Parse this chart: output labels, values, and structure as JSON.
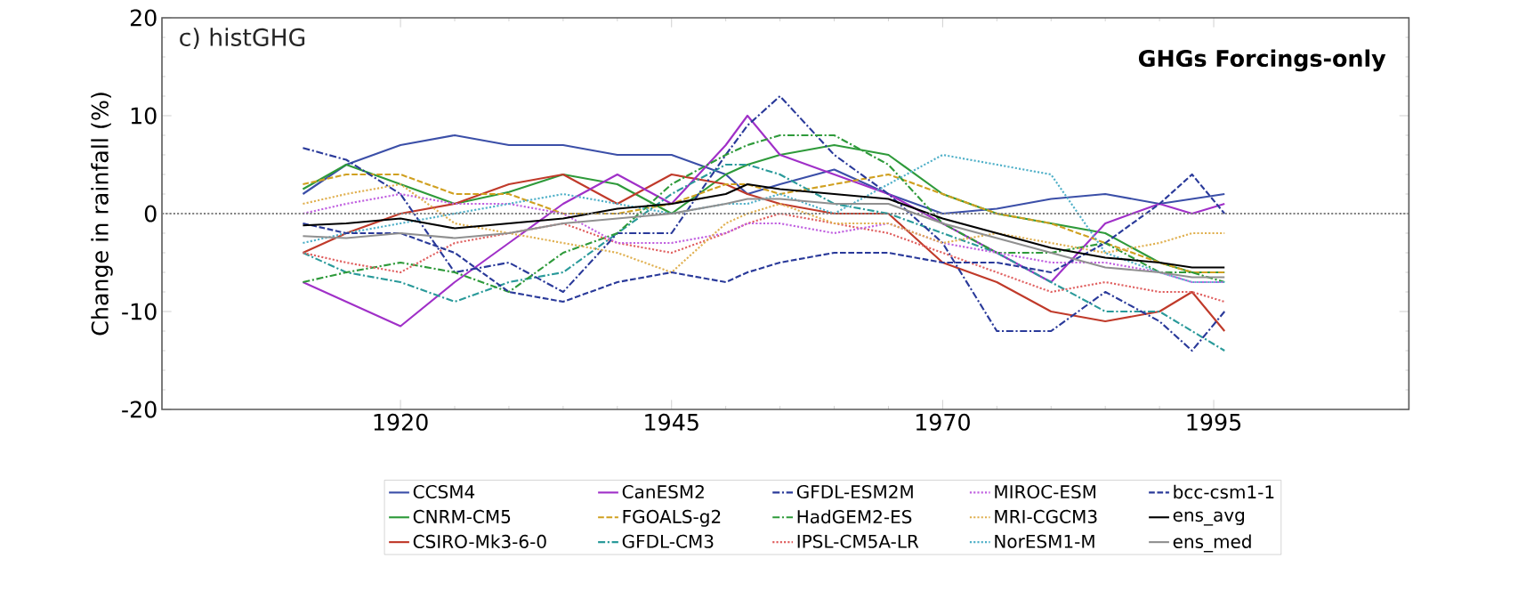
{
  "chart_data": {
    "type": "line",
    "title": "c) histGHG",
    "ylabel": "Change in rainfall (%)",
    "annotations": [
      "GHGs Forcings-only"
    ],
    "x": [
      1911,
      1915,
      1920,
      1925,
      1930,
      1935,
      1940,
      1945,
      1950,
      1952,
      1955,
      1960,
      1965,
      1970,
      1975,
      1980,
      1985,
      1990,
      1993,
      1996
    ],
    "xlim": [
      1898,
      2013
    ],
    "xticks": [
      1920,
      1945,
      1970,
      1995
    ],
    "ylim": [
      -20,
      20
    ],
    "yticks": [
      -20,
      -10,
      0,
      10,
      20
    ],
    "legend": "bottom",
    "ref_lines": [
      {
        "axis": "y",
        "value": 0,
        "color": "#808080",
        "line_style": "dotted"
      }
    ],
    "series": [
      {
        "name": "CCSM4",
        "color": "#3b4fa8",
        "line_style": "solid",
        "values": [
          2,
          5,
          7,
          8,
          7,
          7,
          6,
          6,
          4,
          2,
          3,
          4.5,
          2,
          0,
          0.5,
          1.5,
          2,
          1,
          1.5,
          2
        ]
      },
      {
        "name": "CNRM-CM5",
        "color": "#2e9a3a",
        "line_style": "solid",
        "values": [
          2.5,
          5,
          3,
          1,
          2.2,
          4,
          3,
          0,
          4,
          5,
          6,
          7,
          6,
          2,
          0,
          -1,
          -2,
          -5,
          -6,
          -6
        ]
      },
      {
        "name": "CSIRO-Mk3-6-0",
        "color": "#c03a2a",
        "line_style": "solid",
        "values": [
          -4,
          -2,
          0,
          1,
          3,
          4,
          1,
          4,
          3,
          2,
          1,
          0,
          0,
          -5,
          -7,
          -10,
          -11,
          -10,
          -8,
          -12
        ]
      },
      {
        "name": "CanESM2",
        "color": "#a030c8",
        "line_style": "solid",
        "values": [
          -7,
          -9,
          -11.5,
          -7,
          -3,
          1,
          4,
          1,
          7,
          10,
          6,
          4,
          2,
          -1,
          -4,
          -7,
          -1,
          1,
          0,
          1
        ]
      },
      {
        "name": "FGOALS-g2",
        "color": "#d0a020",
        "line_style": "dashed",
        "values": [
          3,
          4,
          4,
          2,
          2,
          0,
          0,
          1,
          3,
          3,
          2,
          3,
          4,
          2,
          0,
          -1,
          -3,
          -5,
          -6,
          -6
        ]
      },
      {
        "name": "GFDL-CM3",
        "color": "#2a9a9a",
        "line_style": "dashdot",
        "values": [
          -4,
          -6,
          -7,
          -9,
          -7,
          -6,
          -2,
          2,
          5,
          5,
          4,
          1,
          0,
          -2,
          -4,
          -7,
          -10,
          -10,
          -12,
          -14
        ]
      },
      {
        "name": "GFDL-ESM2M",
        "color": "#2a3a9a",
        "line_style": "dashdot",
        "values": [
          6.7,
          5.5,
          2,
          -6,
          -5,
          -8,
          -2,
          -2,
          6,
          9,
          12,
          6,
          2,
          -3,
          -12,
          -12,
          -8,
          -11,
          -14,
          -10
        ]
      },
      {
        "name": "HadGEM2-ES",
        "color": "#2e9a3a",
        "line_style": "dashdot",
        "values": [
          -7,
          -6,
          -5,
          -6,
          -8,
          -4,
          -2,
          3,
          6,
          7,
          8,
          8,
          5,
          -1,
          -4,
          -4,
          -3,
          -6,
          -6,
          -7
        ]
      },
      {
        "name": "IPSL-CM5A-LR",
        "color": "#e06060",
        "line_style": "dotted",
        "values": [
          -4,
          -5,
          -6,
          -3,
          -2,
          -1,
          -3,
          -4,
          -2,
          -1,
          0,
          -1,
          -2,
          -4,
          -6,
          -8,
          -7,
          -8,
          -8,
          -9
        ]
      },
      {
        "name": "MIROC-ESM",
        "color": "#c060e0",
        "line_style": "dotted",
        "values": [
          0,
          1,
          2,
          1,
          1,
          0,
          -3,
          -3,
          -2,
          -1,
          -1,
          -2,
          -1,
          -3,
          -4,
          -5,
          -5,
          -6,
          -7,
          -7
        ]
      },
      {
        "name": "MRI-CGCM3",
        "color": "#e0b050",
        "line_style": "dotted",
        "values": [
          1,
          2,
          3,
          -1,
          -2,
          -3,
          -4,
          -6,
          -1,
          0,
          1,
          -1,
          -1,
          -3,
          -2,
          -3,
          -4,
          -3,
          -2,
          -2
        ]
      },
      {
        "name": "NorESM1-M",
        "color": "#50b0c8",
        "line_style": "dotted",
        "values": [
          -3,
          -2,
          -1,
          0,
          1,
          2,
          1,
          0,
          1,
          1,
          2,
          0,
          3,
          6,
          5,
          4,
          -4,
          -6,
          -7,
          -7
        ]
      },
      {
        "name": "bcc-csm1-1",
        "color": "#2a3a9a",
        "line_style": "dashed",
        "values": [
          -1,
          -2,
          -2,
          -4,
          -8,
          -9,
          -7,
          -6,
          -7,
          -6,
          -5,
          -4,
          -4,
          -5,
          -5,
          -6,
          -3,
          1,
          4,
          0
        ]
      },
      {
        "name": "ens_avg",
        "color": "#000000",
        "line_style": "solid",
        "values": [
          -1.2,
          -1,
          -0.5,
          -1.5,
          -1,
          -0.5,
          0.5,
          1,
          2,
          3,
          2.5,
          2,
          1.5,
          -0.5,
          -2,
          -3.5,
          -4.5,
          -5,
          -5.5,
          -5.5
        ]
      },
      {
        "name": "ens_med",
        "color": "#909090",
        "line_style": "solid",
        "values": [
          -2.3,
          -2.5,
          -2,
          -2.5,
          -2,
          -1,
          -0.5,
          0,
          1,
          1.5,
          1.5,
          1,
          1,
          -1,
          -2.5,
          -4,
          -5.5,
          -6,
          -6.5,
          -6.5
        ]
      }
    ]
  }
}
